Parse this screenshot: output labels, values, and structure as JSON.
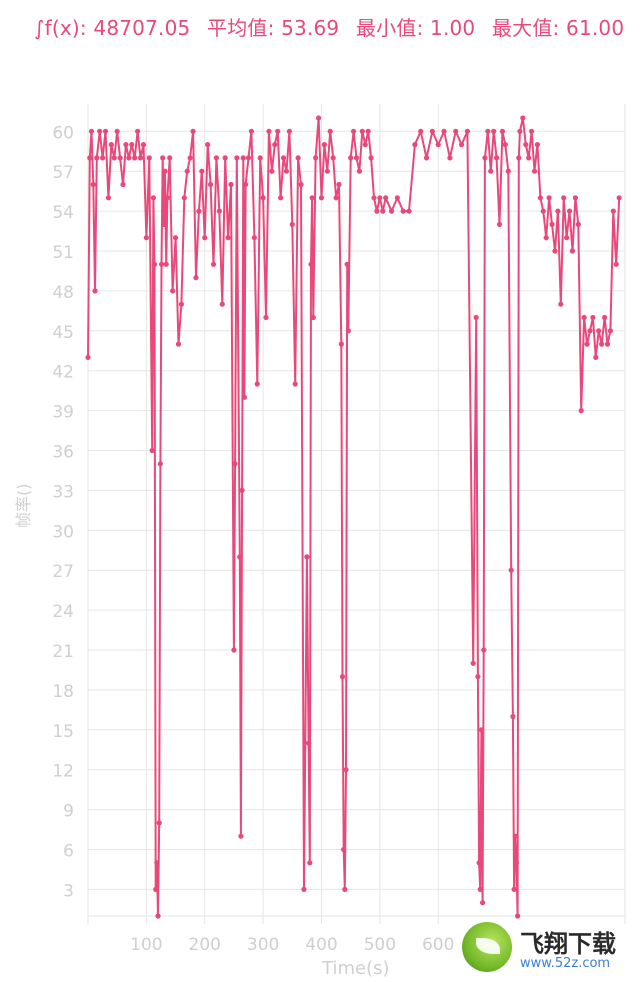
{
  "stats": {
    "integral": "∫f(x): 48707.05",
    "average": "平均值: 53.69",
    "minimum": "最小值: 1.00",
    "maximum": "最大值: 61.00"
  },
  "colors": {
    "line": "#e8497a",
    "grid": "#e6e6e6",
    "axis_text": "#cfcfcf"
  },
  "watermark": {
    "brand": "飞翔下载",
    "url": "www.52z.com"
  },
  "chart_data": {
    "type": "line",
    "title": "",
    "xlabel": "Time(s)",
    "ylabel": "帧率()",
    "xlim": [
      0,
      920
    ],
    "ylim": [
      1,
      61
    ],
    "xticks": [
      100,
      200,
      300,
      400,
      500,
      600
    ],
    "yticks": [
      3,
      6,
      9,
      12,
      15,
      18,
      21,
      24,
      27,
      30,
      33,
      36,
      39,
      42,
      45,
      48,
      51,
      54,
      57,
      60
    ],
    "grid": true,
    "series": [
      {
        "x": [
          0,
          3,
          6,
          9,
          12,
          15,
          20,
          25,
          30,
          35,
          40,
          45,
          50,
          55,
          60,
          65,
          70,
          75,
          80,
          85,
          90,
          95,
          100,
          105,
          110,
          112,
          114,
          116,
          118,
          120,
          122,
          124,
          126,
          128,
          130,
          132,
          134,
          136,
          140,
          145,
          150,
          155,
          160,
          165,
          170,
          175,
          180,
          185,
          190,
          195,
          200,
          205,
          210,
          215,
          220,
          225,
          230,
          235,
          240,
          245,
          250,
          252,
          255,
          260,
          262,
          264,
          266,
          268,
          270,
          275,
          280,
          285,
          290,
          295,
          300,
          305,
          310,
          315,
          320,
          325,
          330,
          335,
          340,
          345,
          350,
          355,
          360,
          365,
          370,
          375,
          378,
          380,
          382,
          384,
          386,
          390,
          395,
          400,
          405,
          410,
          415,
          420,
          425,
          430,
          434,
          436,
          438,
          440,
          442,
          444,
          446,
          450,
          455,
          460,
          465,
          470,
          475,
          480,
          485,
          490,
          495,
          500,
          505,
          510,
          520,
          530,
          540,
          550,
          560,
          570,
          580,
          590,
          600,
          610,
          620,
          630,
          640,
          650,
          660,
          665,
          668,
          670,
          672,
          674,
          676,
          678,
          680,
          685,
          690,
          695,
          700,
          705,
          710,
          715,
          720,
          725,
          728,
          730,
          732,
          734,
          736,
          738,
          740,
          745,
          750,
          755,
          760,
          765,
          770,
          775,
          780,
          785,
          790,
          795,
          800,
          805,
          810,
          815,
          820,
          825,
          830,
          835,
          840,
          845,
          850,
          855,
          860,
          865,
          870,
          875,
          880,
          885,
          890,
          895,
          900,
          905,
          910
        ],
        "y": [
          43,
          58,
          60,
          56,
          48,
          58,
          60,
          58,
          60,
          55,
          59,
          58,
          60,
          58,
          56,
          59,
          58,
          59,
          58,
          60,
          58,
          59,
          52,
          58,
          36,
          55,
          50,
          3,
          5,
          1,
          8,
          35,
          50,
          58,
          53,
          57,
          50,
          55,
          58,
          48,
          52,
          44,
          47,
          55,
          57,
          58,
          60,
          49,
          54,
          57,
          52,
          59,
          56,
          50,
          58,
          54,
          47,
          58,
          52,
          56,
          21,
          35,
          58,
          28,
          7,
          33,
          58,
          40,
          56,
          58,
          60,
          52,
          41,
          58,
          55,
          46,
          60,
          57,
          59,
          60,
          55,
          58,
          57,
          60,
          53,
          41,
          58,
          56,
          3,
          28,
          14,
          5,
          50,
          55,
          46,
          58,
          61,
          55,
          59,
          57,
          60,
          58,
          55,
          56,
          44,
          19,
          6,
          3,
          12,
          50,
          45,
          58,
          60,
          58,
          57,
          60,
          59,
          60,
          58,
          55,
          54,
          55,
          54,
          55,
          54,
          55,
          54,
          54,
          59,
          60,
          58,
          60,
          59,
          60,
          58,
          60,
          59,
          60,
          20,
          46,
          19,
          5,
          3,
          15,
          2,
          21,
          58,
          60,
          57,
          60,
          58,
          53,
          60,
          59,
          57,
          27,
          16,
          3,
          7,
          5,
          1,
          58,
          60,
          61,
          59,
          58,
          60,
          57,
          59,
          55,
          54,
          52,
          55,
          53,
          51,
          54,
          47,
          55,
          52,
          54,
          51,
          55,
          53,
          39,
          46,
          44,
          45,
          46,
          43,
          45,
          44,
          46,
          44,
          45,
          54,
          50,
          55
        ]
      }
    ]
  }
}
